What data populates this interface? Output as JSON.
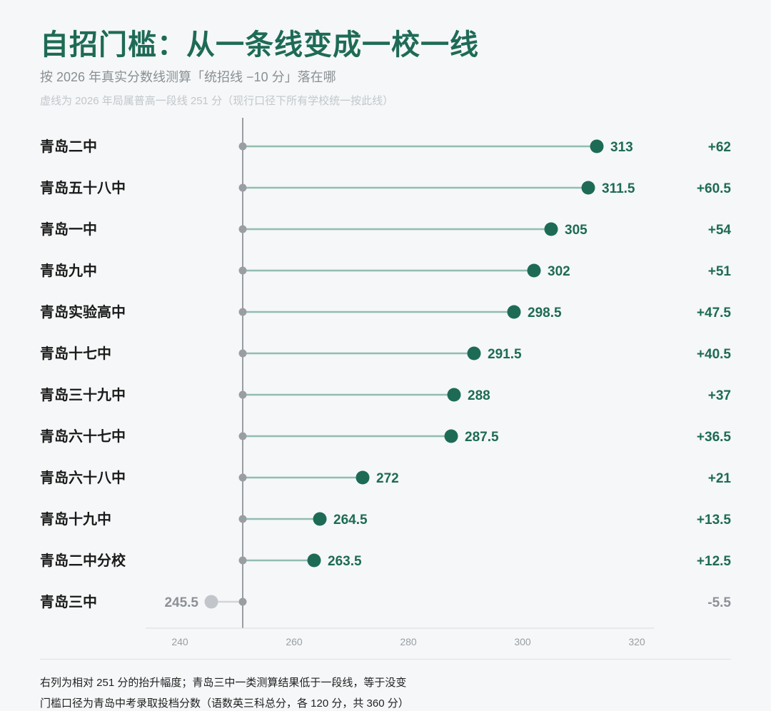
{
  "header": {
    "title": "自招门槛：从一条线变成一校一线",
    "subtitle": "按 2026 年真实分数线测算「统招线 −10 分」落在哪",
    "note": "虚线为 2026 年局属普高一段线 251 分（现行口径下所有学校统一按此线）"
  },
  "footer": {
    "line1": "右列为相对 251 分的抬升幅度；青岛三中一类测算结果低于一段线，等于没变",
    "line2": "门槛口径为青岛中考录取投档分数（语数英三科总分，各 120 分，共 360 分）"
  },
  "colors": {
    "accent": "#1e6b55",
    "stem": "#93bdb0",
    "baseline": "#9a9ea3",
    "below": "#c2c5ca",
    "below_text": "#8d9196",
    "label": "#1a1a1a",
    "tick": "#9a9ea3"
  },
  "chart_data": {
    "type": "lollipop",
    "baseline": 251,
    "xlim": [
      232,
      324
    ],
    "xticks": [
      240,
      260,
      280,
      300,
      320
    ],
    "categories": [
      "青岛二中",
      "青岛五十八中",
      "青岛一中",
      "青岛九中",
      "青岛实验高中",
      "青岛十七中",
      "青岛三十九中",
      "青岛六十七中",
      "青岛六十八中",
      "青岛十九中",
      "青岛二中分校",
      "青岛三中"
    ],
    "values": [
      313,
      311.5,
      305,
      302,
      298.5,
      291.5,
      288,
      287.5,
      272,
      264.5,
      263.5,
      245.5
    ],
    "value_labels": [
      "313",
      "311.5",
      "305",
      "302",
      "298.5",
      "291.5",
      "288",
      "287.5",
      "272",
      "264.5",
      "263.5",
      "245.5"
    ],
    "deltas": [
      "+62",
      "+60.5",
      "+54",
      "+51",
      "+47.5",
      "+40.5",
      "+37",
      "+36.5",
      "+21",
      "+13.5",
      "+12.5",
      "-5.5"
    ]
  }
}
